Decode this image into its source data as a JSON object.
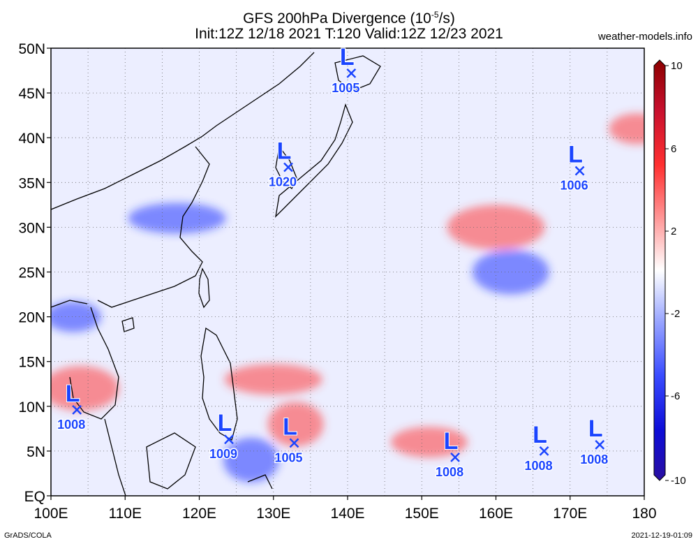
{
  "header": {
    "title_line1": "GFS 200hPa Divergence (10",
    "title_sup": "-5",
    "title_line1_end": "/s)",
    "title_line2": "Init:12Z 12/18 2021 T:120 Valid:12Z 12/23 2021",
    "site": "weather-models.info"
  },
  "footer": {
    "left": "GrADS/COLA",
    "right": "2021-12-19-01:09"
  },
  "map": {
    "lon_range": [
      100,
      180
    ],
    "lat_range": [
      0,
      50
    ],
    "lon_ticks": [
      "100E",
      "110E",
      "120E",
      "130E",
      "140E",
      "150E",
      "160E",
      "170E",
      "180"
    ],
    "lat_ticks": [
      "EQ",
      "5N",
      "10N",
      "15N",
      "20N",
      "25N",
      "30N",
      "35N",
      "40N",
      "45N",
      "50N"
    ],
    "grid": "dotted 5 degree",
    "lows": [
      {
        "label": "L",
        "pressure": "1005",
        "lon": 140.5,
        "lat": 47.2
      },
      {
        "label": "L",
        "pressure": "1020",
        "lon": 132.0,
        "lat": 36.7
      },
      {
        "label": "L",
        "pressure": "1006",
        "lon": 171.3,
        "lat": 36.3
      },
      {
        "label": "L",
        "pressure": "1008",
        "lon": 103.5,
        "lat": 9.6
      },
      {
        "label": "L",
        "pressure": "1009",
        "lon": 124.0,
        "lat": 6.3
      },
      {
        "label": "L",
        "pressure": "1005",
        "lon": 132.8,
        "lat": 5.9
      },
      {
        "label": "L",
        "pressure": "1008",
        "lon": 154.5,
        "lat": 4.3
      },
      {
        "label": "L",
        "pressure": "1008",
        "lon": 166.5,
        "lat": 5.0
      },
      {
        "label": "L",
        "pressure": "1008",
        "lon": 174.0,
        "lat": 5.7
      }
    ]
  },
  "colorbar": {
    "labels": [
      "10",
      "6",
      "2",
      "-2",
      "-6",
      "-10"
    ],
    "colors": [
      "#8b0000",
      "#e31a1c",
      "#ff6a6a",
      "#ffd6d6",
      "#ffffff",
      "#d6dcff",
      "#6f7fff",
      "#1010ff",
      "#2a0fa0"
    ]
  },
  "field_features": [
    {
      "sign": "negative",
      "lon": 103,
      "lat": 20
    },
    {
      "sign": "positive",
      "lon": 104,
      "lat": 12
    },
    {
      "sign": "positive",
      "lon": 130,
      "lat": 13
    },
    {
      "sign": "positive",
      "lon": 133,
      "lat": 8
    },
    {
      "sign": "positive",
      "lon": 151,
      "lat": 6
    },
    {
      "sign": "positive",
      "lon": 160,
      "lat": 30
    },
    {
      "sign": "positive",
      "lon": 179,
      "lat": 41
    },
    {
      "sign": "negative",
      "lon": 162,
      "lat": 25
    },
    {
      "sign": "negative",
      "lon": 117,
      "lat": 31
    },
    {
      "sign": "negative",
      "lon": 127,
      "lat": 4
    }
  ]
}
